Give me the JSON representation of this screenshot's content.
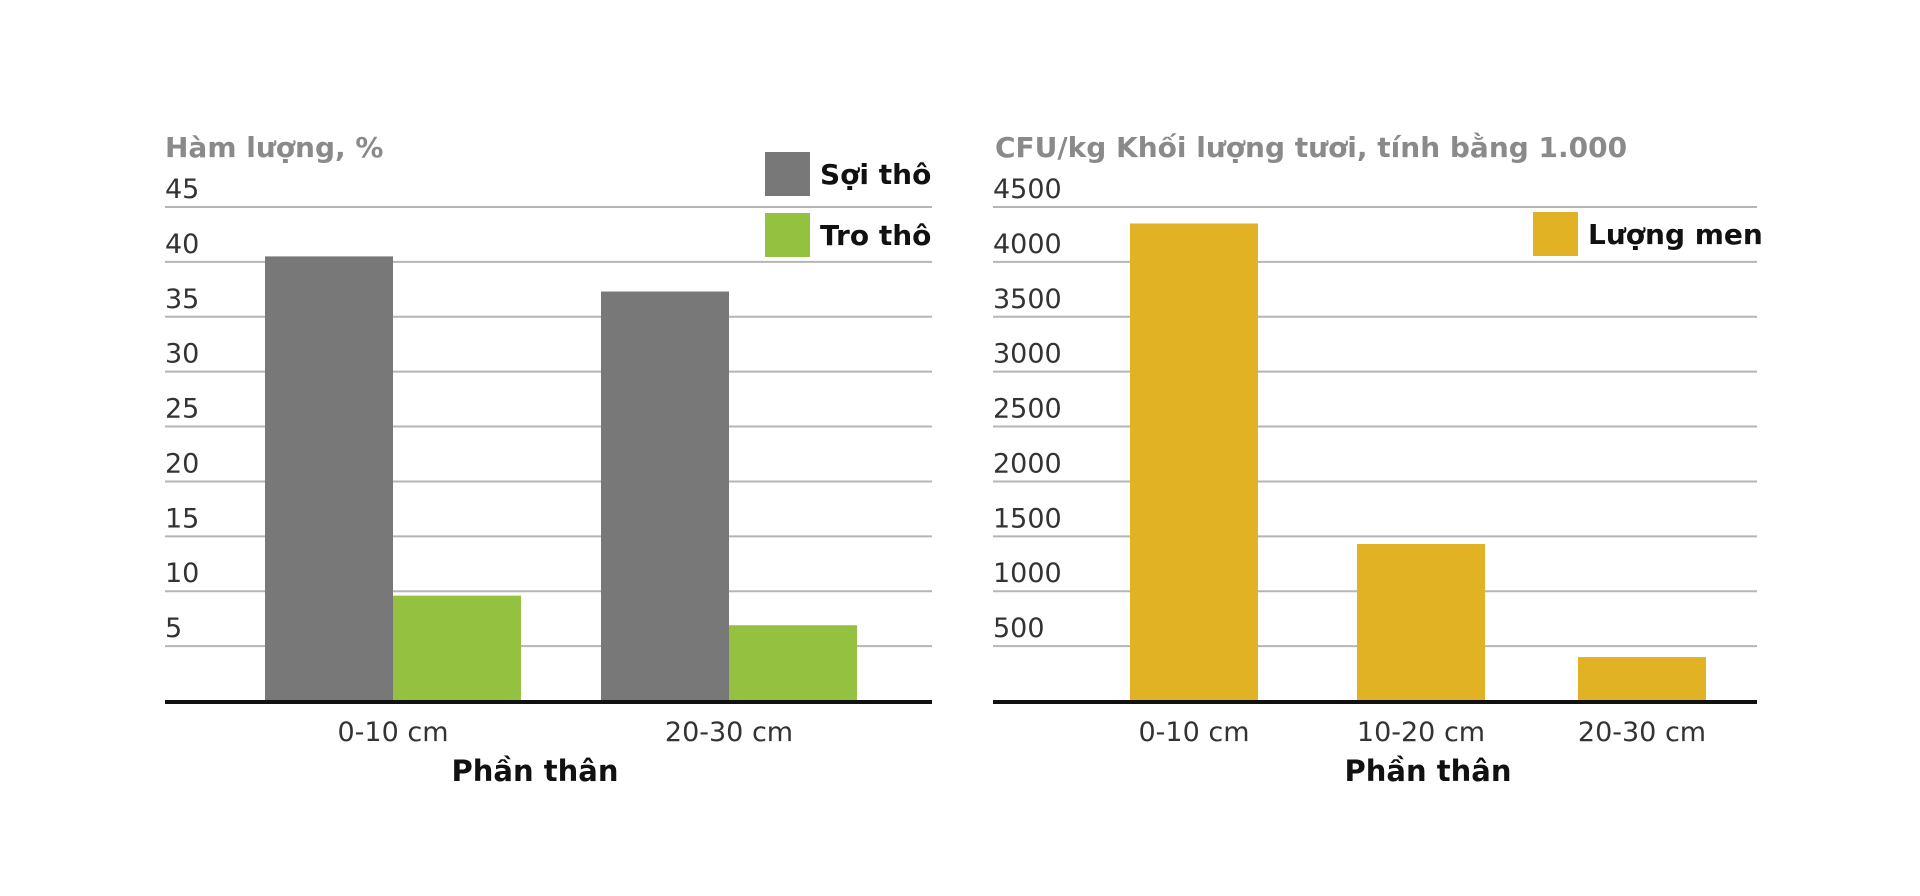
{
  "chart_data": [
    {
      "type": "bar",
      "ylabel": "Hàm lượng, %",
      "xlabel": "Phần thân",
      "categories": [
        "0-10 cm",
        "20-30 cm"
      ],
      "ylim": [
        0,
        45
      ],
      "yticks": [
        "5",
        "10",
        "15",
        "20",
        "25",
        "30",
        "35",
        "40",
        "45"
      ],
      "grid": true,
      "legend_position": "top-right",
      "series": [
        {
          "name": "Sợi thô",
          "color": "#787878",
          "values": [
            40.5,
            37.3
          ]
        },
        {
          "name": "Tro thô",
          "color": "#95c140",
          "values": [
            9.6,
            6.9
          ]
        }
      ]
    },
    {
      "type": "bar",
      "ylabel": "CFU/kg Khối lượng tươi, tính bằng 1.000",
      "xlabel": "Phần thân",
      "categories": [
        "0-10 cm",
        "10-20 cm",
        "20-30 cm"
      ],
      "ylim": [
        0,
        4500
      ],
      "yticks": [
        "500",
        "1000",
        "1500",
        "2000",
        "2500",
        "3000",
        "3500",
        "4000",
        "4500"
      ],
      "grid": true,
      "legend_position": "top-right",
      "series": [
        {
          "name": "Lượng men",
          "color": "#e0b224",
          "values": [
            4350,
            1430,
            400
          ]
        }
      ]
    }
  ]
}
